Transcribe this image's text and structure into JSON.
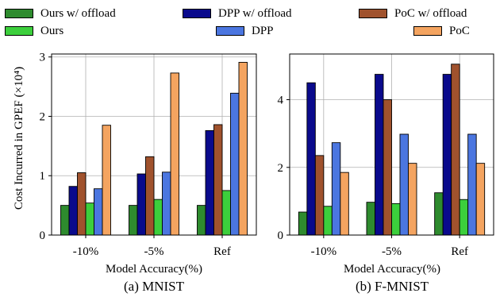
{
  "legend": [
    {
      "label": "Ours w/ offload",
      "color": "#2e8b2e"
    },
    {
      "label": "DPP w/ offload",
      "color": "#0a0a8c"
    },
    {
      "label": "PoC w/ offload",
      "color": "#a0522d"
    },
    {
      "label": "Ours",
      "color": "#3ccf3c"
    },
    {
      "label": "DPP",
      "color": "#4b76e0"
    },
    {
      "label": "PoC",
      "color": "#f4a460"
    }
  ],
  "chart_data": [
    {
      "type": "bar",
      "caption": "(a) MNIST",
      "xlabel": "Model Accuracy(%)",
      "ylabel": "Cost Incurred in GPEF (×10⁴)",
      "categories": [
        "-10%",
        "-5%",
        "Ref"
      ],
      "ylim": [
        0,
        3.05
      ],
      "yticks": [
        0,
        1,
        2,
        3
      ],
      "grid": true,
      "series": [
        {
          "name": "Ours w/ offload",
          "values": [
            0.5,
            0.5,
            0.5
          ]
        },
        {
          "name": "DPP w/ offload",
          "values": [
            0.82,
            1.03,
            1.76
          ]
        },
        {
          "name": "PoC w/ offload",
          "values": [
            1.05,
            1.32,
            1.86
          ]
        },
        {
          "name": "Ours",
          "values": [
            0.54,
            0.6,
            0.75
          ]
        },
        {
          "name": "DPP",
          "values": [
            0.78,
            1.06,
            2.39
          ]
        },
        {
          "name": "PoC",
          "values": [
            1.85,
            2.73,
            2.91
          ]
        }
      ]
    },
    {
      "type": "bar",
      "caption": "(b) F-MNIST",
      "xlabel": "Model Accuracy(%)",
      "ylabel": "",
      "categories": [
        "-10%",
        "-5%",
        "Ref"
      ],
      "ylim": [
        0,
        5.35
      ],
      "yticks": [
        0,
        2,
        4
      ],
      "grid": true,
      "series": [
        {
          "name": "Ours w/ offload",
          "values": [
            0.68,
            0.97,
            1.25
          ]
        },
        {
          "name": "DPP w/ offload",
          "values": [
            4.5,
            4.75,
            4.75
          ]
        },
        {
          "name": "PoC w/ offload",
          "values": [
            2.35,
            4.0,
            5.05
          ]
        },
        {
          "name": "Ours",
          "values": [
            0.85,
            0.93,
            1.05
          ]
        },
        {
          "name": "DPP",
          "values": [
            2.73,
            2.98,
            2.98
          ]
        },
        {
          "name": "PoC",
          "values": [
            1.85,
            2.12,
            2.12
          ]
        }
      ]
    }
  ]
}
